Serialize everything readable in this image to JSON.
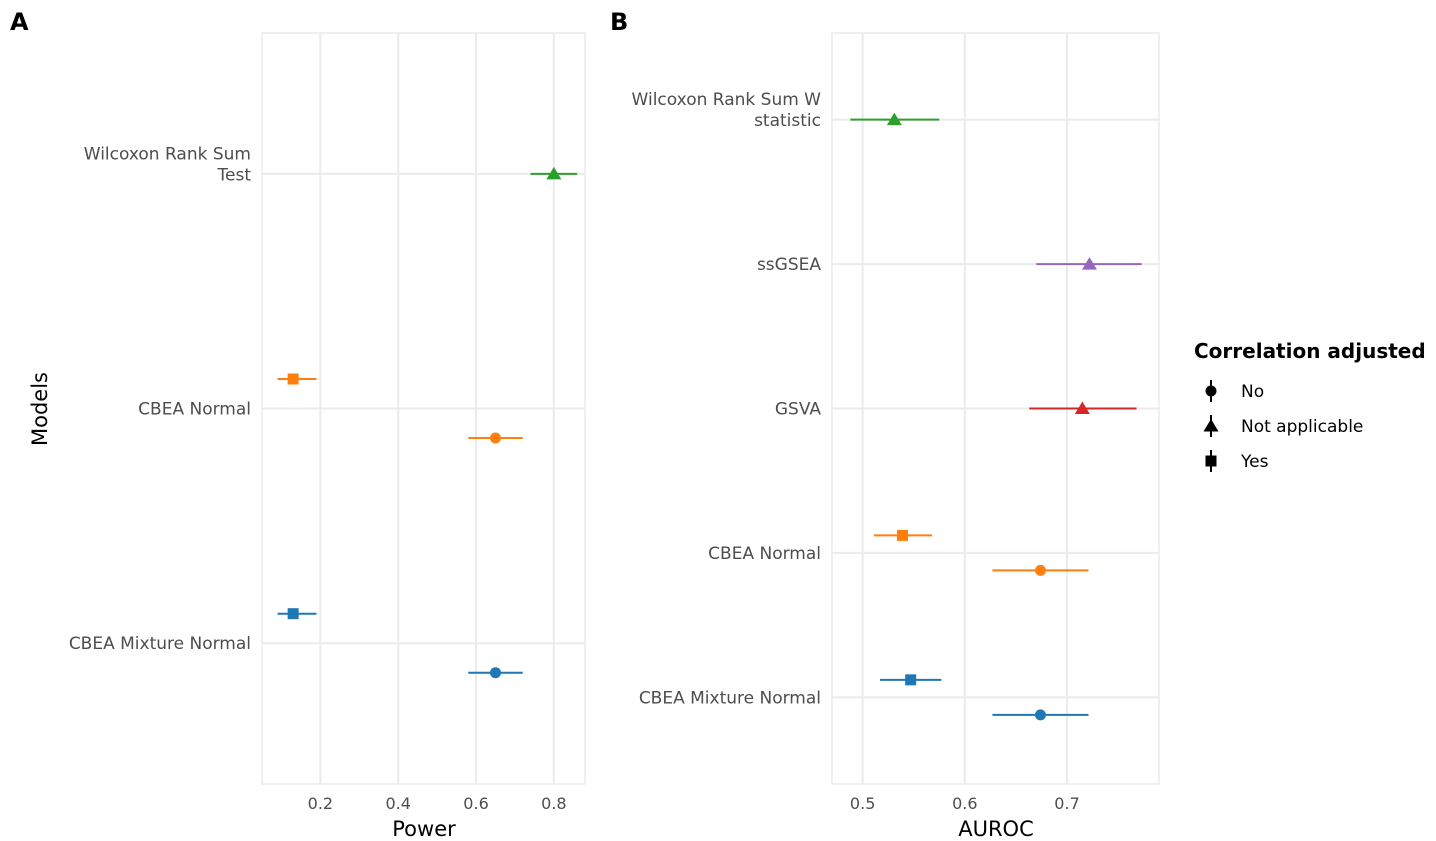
{
  "colors": {
    "green": "#2ca02c",
    "orange": "#ff7f0e",
    "blue": "#1f77b4",
    "purple": "#9467bd",
    "red": "#d62728"
  },
  "chart_data": [
    {
      "panel": "A",
      "type": "scatter",
      "subtype": "point-range",
      "xlabel": "Power",
      "ylabel": "Models",
      "xlim": [
        0.05,
        0.88
      ],
      "xticks": [
        0.2,
        0.4,
        0.6,
        0.8
      ],
      "xtick_labels": [
        "0.2",
        "0.4",
        "0.6",
        "0.8"
      ],
      "grid": true,
      "categories": [
        {
          "lines": [
            "CBEA Mixture Normal"
          ]
        },
        {
          "lines": [
            "CBEA Normal"
          ]
        },
        {
          "lines": [
            "Wilcoxon Rank Sum",
            "Test"
          ]
        }
      ],
      "points": [
        {
          "cat": 2,
          "dodge": 0,
          "est": 0.8,
          "lo": 0.74,
          "hi": 0.86,
          "shape": "triangle",
          "color": "#2ca02c"
        },
        {
          "cat": 1,
          "dodge": -1,
          "est": 0.13,
          "lo": 0.09,
          "hi": 0.19,
          "shape": "square",
          "color": "#ff7f0e"
        },
        {
          "cat": 1,
          "dodge": 1,
          "est": 0.65,
          "lo": 0.58,
          "hi": 0.72,
          "shape": "circle",
          "color": "#ff7f0e"
        },
        {
          "cat": 0,
          "dodge": -1,
          "est": 0.13,
          "lo": 0.09,
          "hi": 0.19,
          "shape": "square",
          "color": "#1f77b4"
        },
        {
          "cat": 0,
          "dodge": 1,
          "est": 0.65,
          "lo": 0.58,
          "hi": 0.72,
          "shape": "circle",
          "color": "#1f77b4"
        }
      ]
    },
    {
      "panel": "B",
      "type": "scatter",
      "subtype": "point-range",
      "xlabel": "AUROC",
      "ylabel": "",
      "xlim": [
        0.47,
        0.79
      ],
      "xticks": [
        0.5,
        0.6,
        0.7
      ],
      "xtick_labels": [
        "0.5",
        "0.6",
        "0.7"
      ],
      "grid": true,
      "categories": [
        {
          "lines": [
            "CBEA Mixture Normal"
          ]
        },
        {
          "lines": [
            "CBEA Normal"
          ]
        },
        {
          "lines": [
            "GSVA"
          ]
        },
        {
          "lines": [
            "ssGSEA"
          ]
        },
        {
          "lines": [
            "Wilcoxon Rank Sum W",
            "statistic"
          ]
        }
      ],
      "points": [
        {
          "cat": 4,
          "dodge": 0,
          "est": 0.531,
          "lo": 0.488,
          "hi": 0.575,
          "shape": "triangle",
          "color": "#2ca02c"
        },
        {
          "cat": 3,
          "dodge": 0,
          "est": 0.722,
          "lo": 0.67,
          "hi": 0.773,
          "shape": "triangle",
          "color": "#9467bd"
        },
        {
          "cat": 2,
          "dodge": 0,
          "est": 0.715,
          "lo": 0.663,
          "hi": 0.768,
          "shape": "triangle",
          "color": "#d62728"
        },
        {
          "cat": 1,
          "dodge": -1,
          "est": 0.539,
          "lo": 0.511,
          "hi": 0.568,
          "shape": "square",
          "color": "#ff7f0e"
        },
        {
          "cat": 1,
          "dodge": 1,
          "est": 0.674,
          "lo": 0.627,
          "hi": 0.721,
          "shape": "circle",
          "color": "#ff7f0e"
        },
        {
          "cat": 0,
          "dodge": -1,
          "est": 0.547,
          "lo": 0.517,
          "hi": 0.577,
          "shape": "square",
          "color": "#1f77b4"
        },
        {
          "cat": 0,
          "dodge": 1,
          "est": 0.674,
          "lo": 0.627,
          "hi": 0.721,
          "shape": "circle",
          "color": "#1f77b4"
        }
      ]
    }
  ],
  "legend": {
    "title": "Correlation adjusted",
    "position": "right",
    "items": [
      {
        "label": "No",
        "shape": "circle"
      },
      {
        "label": "Not applicable",
        "shape": "triangle"
      },
      {
        "label": "Yes",
        "shape": "square"
      }
    ]
  }
}
